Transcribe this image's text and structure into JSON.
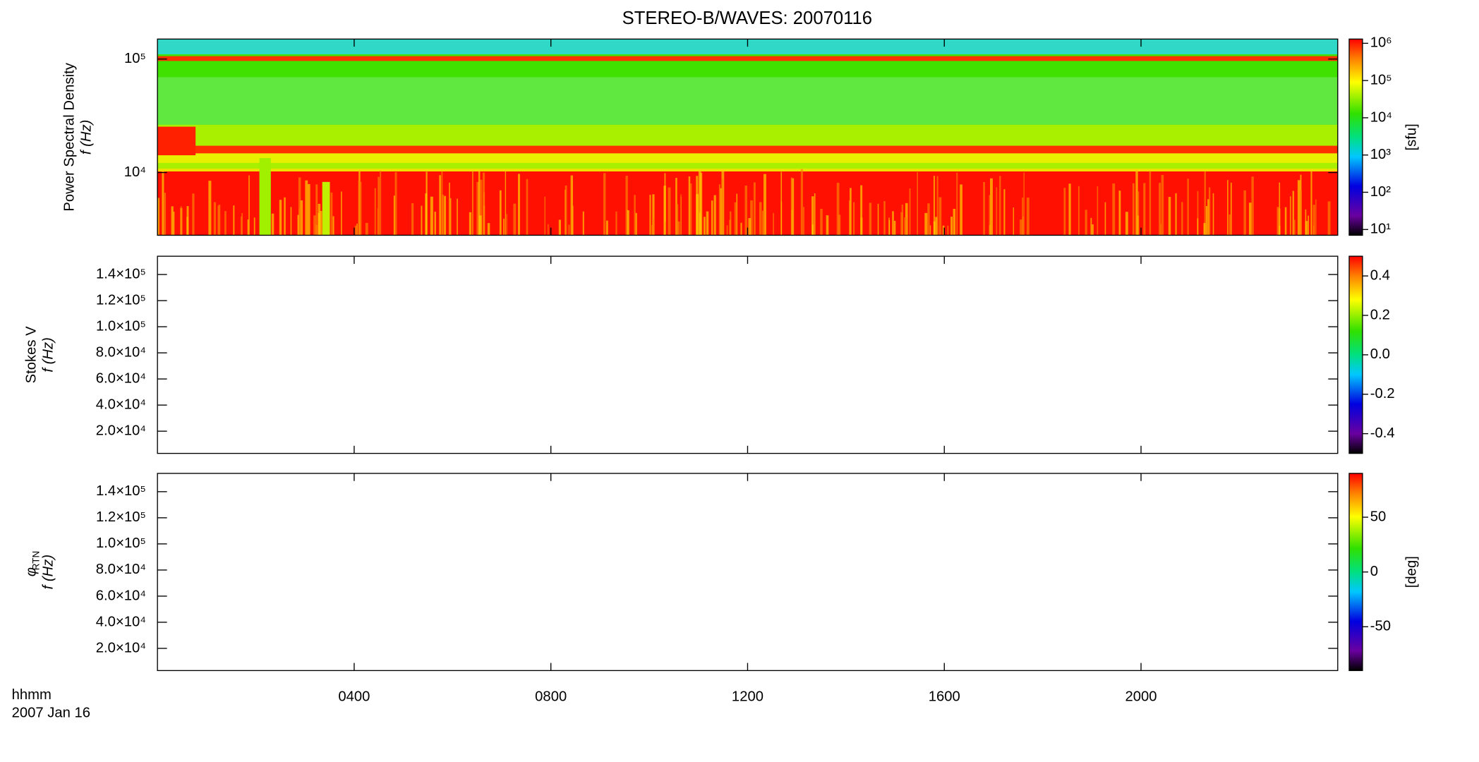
{
  "chart_data": {
    "type": "spectrogram",
    "title": "STEREO-B/WAVES: 20070116",
    "x_label": "hhmm",
    "date_label": "2007 Jan 16",
    "xlim": [
      0,
      24
    ],
    "xticks": [
      {
        "value": 4,
        "label": "0400"
      },
      {
        "value": 8,
        "label": "0800"
      },
      {
        "value": 12,
        "label": "1200"
      },
      {
        "value": 16,
        "label": "1600"
      },
      {
        "value": 20,
        "label": "2000"
      }
    ],
    "panels": [
      {
        "ylabel": [
          "Power Spectral Density",
          "f (Hz)"
        ],
        "yscale": "log",
        "ylim": [
          2800,
          150000
        ],
        "yticks": [
          {
            "value": 10000,
            "label": "10⁴"
          },
          {
            "value": 100000,
            "label": "10⁵"
          }
        ],
        "colorbar": {
          "scale": "log",
          "lim": [
            7,
            1300000
          ],
          "label": "[sfu]",
          "ticks": [
            {
              "value": 10,
              "label": "10¹"
            },
            {
              "value": 100,
              "label": "10²"
            },
            {
              "value": 1000,
              "label": "10³"
            },
            {
              "value": 10000,
              "label": "10⁴"
            },
            {
              "value": 100000,
              "label": "10⁵"
            },
            {
              "value": 1000000,
              "label": "10⁶"
            }
          ]
        }
      },
      {
        "ylabel": [
          "Stokes V",
          "f (Hz)"
        ],
        "yscale": "linear",
        "ylim": [
          3000,
          154000
        ],
        "yticks": [
          {
            "value": 20000,
            "label": "2.0×10⁴"
          },
          {
            "value": 40000,
            "label": "4.0×10⁴"
          },
          {
            "value": 60000,
            "label": "6.0×10⁴"
          },
          {
            "value": 80000,
            "label": "8.0×10⁴"
          },
          {
            "value": 100000,
            "label": "1.0×10⁵"
          },
          {
            "value": 120000,
            "label": "1.2×10⁵"
          },
          {
            "value": 140000,
            "label": "1.4×10⁵"
          }
        ],
        "colorbar": {
          "scale": "linear",
          "lim": [
            -0.5,
            0.5
          ],
          "ticks": [
            -0.4,
            -0.2,
            {
              "value": 0,
              "label": "0.0"
            },
            0.2,
            0.4
          ]
        }
      },
      {
        "ylabel": [
          "φ",
          "f (Hz)"
        ],
        "ylabel_sub": "RTN",
        "yscale": "linear",
        "ylim": [
          3000,
          154000
        ],
        "yticks": [
          {
            "value": 20000,
            "label": "2.0×10⁴"
          },
          {
            "value": 40000,
            "label": "4.0×10⁴"
          },
          {
            "value": 60000,
            "label": "6.0×10⁴"
          },
          {
            "value": 80000,
            "label": "8.0×10⁴"
          },
          {
            "value": 100000,
            "label": "1.0×10⁵"
          },
          {
            "value": 120000,
            "label": "1.2×10⁵"
          },
          {
            "value": 140000,
            "label": "1.4×10⁵"
          }
        ],
        "colorbar": {
          "scale": "linear",
          "lim": [
            -90,
            90
          ],
          "label": "[deg]",
          "ticks": [
            -50,
            0,
            50
          ]
        }
      }
    ]
  }
}
